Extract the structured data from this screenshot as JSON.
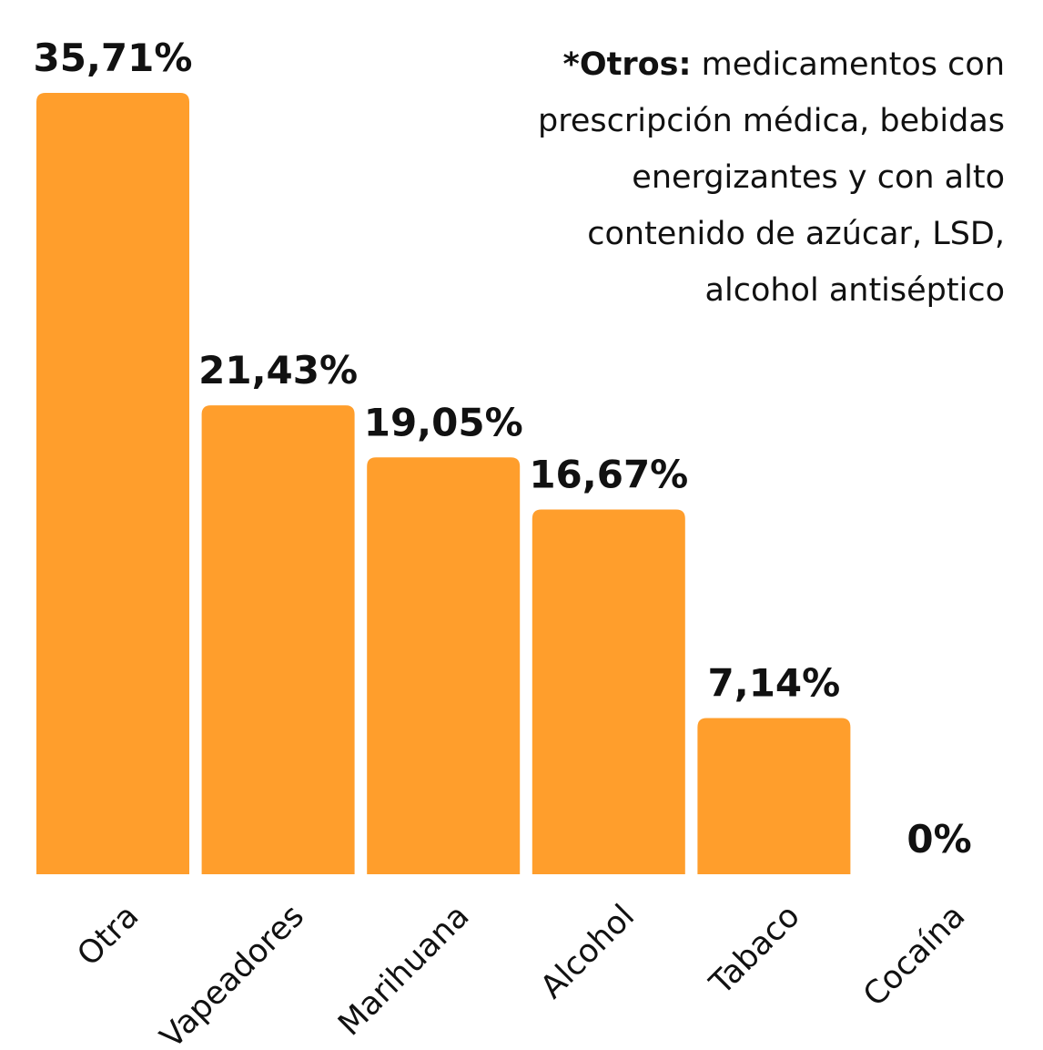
{
  "note": {
    "bold": "*Otros:",
    "text": " medicamentos con prescripción médica, bebidas energizantes y con alto contenido de azúcar, LSD, alcohol antiséptico"
  },
  "colors": {
    "bar": "#FF9E2C",
    "text": "#111111",
    "background": "#FFFFFF"
  },
  "chart_data": {
    "type": "bar",
    "categories": [
      "Otra",
      "Vapeadores",
      "Marihuana",
      "Alcohol",
      "Tabaco",
      "Cocaína"
    ],
    "values": [
      35.71,
      21.43,
      19.05,
      16.67,
      7.14,
      0
    ],
    "value_labels": [
      "35,71%",
      "21,43%",
      "19,05%",
      "16,67%",
      "7,14%",
      "0%"
    ],
    "title": "",
    "xlabel": "",
    "ylabel": "",
    "ylim": [
      0,
      35.71
    ],
    "grid": false,
    "legend": "none"
  }
}
